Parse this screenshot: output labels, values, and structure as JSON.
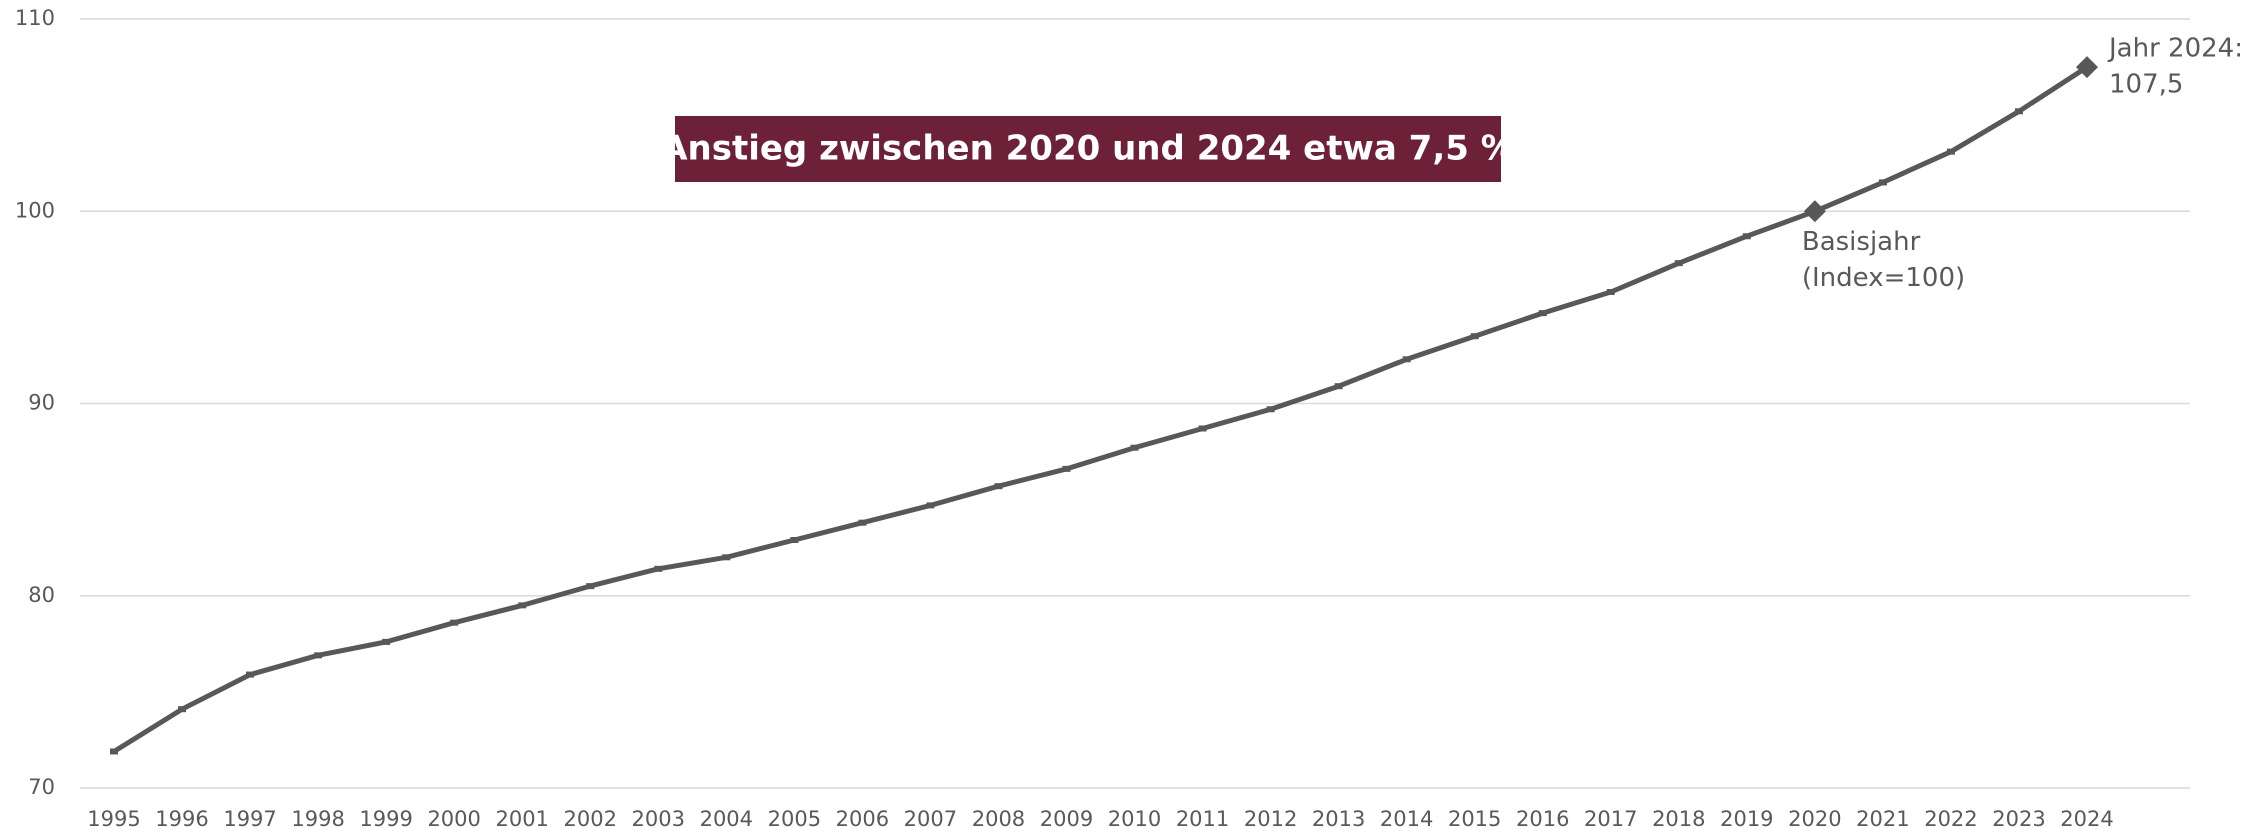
{
  "chart_data": {
    "type": "line",
    "title": "Anstieg zwischen 2020 und 2024 etwa 7,5 %",
    "categories": [
      "1995",
      "1996",
      "1997",
      "1998",
      "1999",
      "2000",
      "2001",
      "2002",
      "2003",
      "2004",
      "2005",
      "2006",
      "2007",
      "2008",
      "2009",
      "2010",
      "2011",
      "2012",
      "2013",
      "2014",
      "2015",
      "2016",
      "2017",
      "2018",
      "2019",
      "2020",
      "2021",
      "2022",
      "2023",
      "2024"
    ],
    "values": [
      71.9,
      74.1,
      75.9,
      76.9,
      77.6,
      78.6,
      79.5,
      80.5,
      81.4,
      82.0,
      82.9,
      83.8,
      84.7,
      85.7,
      86.6,
      87.7,
      88.7,
      89.7,
      90.9,
      92.3,
      93.5,
      94.7,
      95.8,
      97.3,
      98.7,
      100,
      101.5,
      103.1,
      105.2,
      107.5
    ],
    "color": "#58585a",
    "ylim": [
      70,
      110
    ],
    "yticks": [
      70,
      80,
      90,
      100,
      110
    ],
    "grid": true,
    "annotations": [
      {
        "category": "2020",
        "lines": [
          "Basisjahr",
          "(Index=100)"
        ],
        "position": "below"
      },
      {
        "category": "2024",
        "lines": [
          "Jahr 2024:",
          "107,5"
        ],
        "position": "right"
      }
    ]
  }
}
